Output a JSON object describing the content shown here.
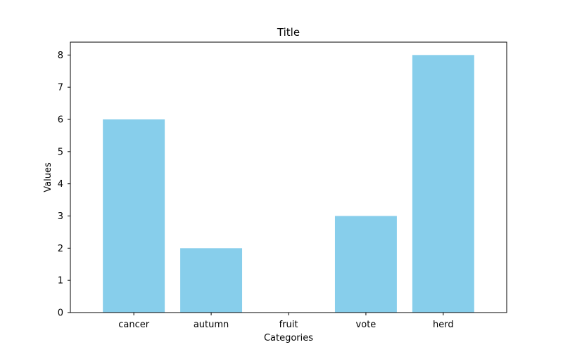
{
  "chart_data": {
    "type": "bar",
    "title": "Title",
    "xlabel": "Categories",
    "ylabel": "Values",
    "categories": [
      "cancer",
      "autumn",
      "fruit",
      "vote",
      "herd"
    ],
    "values": [
      6,
      2,
      0,
      3,
      8
    ],
    "ylim": [
      0,
      8.4
    ],
    "yticks": [
      0,
      1,
      2,
      3,
      4,
      5,
      6,
      7,
      8
    ],
    "bar_color": "#87CEEB",
    "grid": false,
    "legend": "none"
  }
}
